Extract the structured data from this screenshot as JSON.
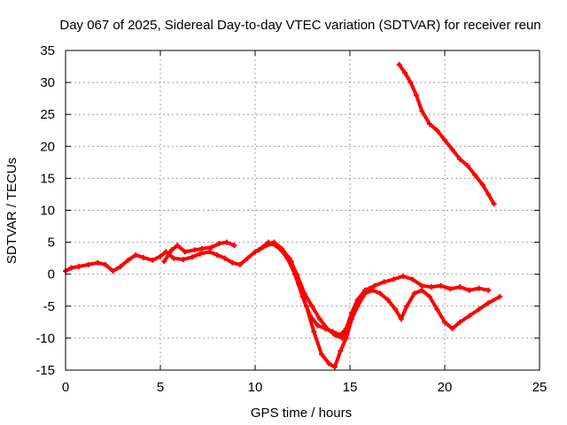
{
  "chart_data": {
    "type": "scatter",
    "title": "Day 067 of 2025, Sidereal Day-to-day VTEC variation (SDTVAR) for receiver reun",
    "xlabel": "GPS time / hours",
    "ylabel": "SDTVAR / TECUs",
    "xlim": [
      0,
      25
    ],
    "ylim": [
      -15,
      35
    ],
    "xticks": [
      0,
      5,
      10,
      15,
      20,
      25
    ],
    "yticks": [
      -15,
      -10,
      -5,
      0,
      5,
      10,
      15,
      20,
      25,
      30,
      35
    ],
    "grid": true,
    "color": "#ff0000",
    "series": [
      {
        "points": [
          [
            0,
            0.5
          ],
          [
            0.3,
            1.0
          ],
          [
            0.7,
            1.2
          ],
          [
            1.2,
            1.5
          ],
          [
            1.7,
            1.8
          ],
          [
            2.1,
            1.5
          ],
          [
            2.5,
            0.5
          ],
          [
            2.9,
            1.2
          ],
          [
            3.3,
            2.2
          ],
          [
            3.7,
            3.0
          ],
          [
            4.1,
            2.6
          ],
          [
            4.6,
            2.2
          ],
          [
            5.0,
            2.8
          ],
          [
            5.3,
            3.5
          ],
          [
            5.7,
            2.5
          ],
          [
            6.2,
            2.3
          ],
          [
            6.7,
            2.7
          ],
          [
            7.1,
            3.2
          ],
          [
            7.6,
            3.5
          ],
          [
            8.0,
            3.0
          ],
          [
            8.4,
            2.5
          ],
          [
            8.8,
            1.8
          ],
          [
            9.2,
            1.5
          ],
          [
            9.6,
            2.5
          ],
          [
            10.0,
            3.5
          ],
          [
            10.4,
            4.2
          ],
          [
            10.9,
            4.8
          ],
          [
            11.3,
            4.0
          ],
          [
            11.7,
            2.5
          ],
          [
            12.1,
            0.0
          ],
          [
            12.5,
            -3.5
          ],
          [
            12.9,
            -6.5
          ],
          [
            13.3,
            -8.0
          ],
          [
            13.7,
            -8.5
          ],
          [
            14.1,
            -9.0
          ],
          [
            14.5,
            -9.5
          ],
          [
            14.8,
            -8.5
          ],
          [
            15.1,
            -6.0
          ],
          [
            15.4,
            -4.0
          ],
          [
            15.8,
            -2.5
          ],
          [
            16.3,
            -1.8
          ],
          [
            16.8,
            -1.2
          ],
          [
            17.3,
            -0.8
          ],
          [
            17.8,
            -0.3
          ],
          [
            18.3,
            -0.8
          ],
          [
            18.8,
            -1.8
          ],
          [
            19.3,
            -2.0
          ],
          [
            19.8,
            -1.8
          ],
          [
            20.3,
            -2.3
          ],
          [
            20.8,
            -2.0
          ],
          [
            21.3,
            -2.5
          ],
          [
            21.8,
            -2.2
          ],
          [
            22.3,
            -2.5
          ]
        ]
      },
      {
        "points": [
          [
            5.2,
            2.0
          ],
          [
            5.6,
            3.8
          ],
          [
            5.9,
            4.5
          ],
          [
            6.3,
            3.5
          ],
          [
            6.8,
            3.8
          ],
          [
            7.2,
            4.0
          ],
          [
            7.7,
            4.2
          ],
          [
            8.1,
            4.8
          ],
          [
            8.5,
            5.0
          ],
          [
            8.9,
            4.5
          ]
        ]
      },
      {
        "points": [
          [
            10.2,
            3.8
          ],
          [
            10.7,
            5.0
          ],
          [
            11.1,
            4.5
          ],
          [
            11.5,
            3.5
          ],
          [
            11.9,
            2.0
          ],
          [
            12.3,
            -1.5
          ],
          [
            12.7,
            -5.0
          ],
          [
            13.1,
            -9.0
          ],
          [
            13.5,
            -12.5
          ],
          [
            13.9,
            -14.0
          ],
          [
            14.2,
            -14.5
          ],
          [
            14.5,
            -12.0
          ],
          [
            14.8,
            -10.0
          ],
          [
            15.1,
            -7.0
          ],
          [
            15.4,
            -5.0
          ],
          [
            15.8,
            -3.0
          ],
          [
            16.2,
            -2.5
          ],
          [
            16.6,
            -3.0
          ],
          [
            17.0,
            -4.0
          ],
          [
            17.4,
            -5.5
          ],
          [
            17.7,
            -7.0
          ],
          [
            18.0,
            -5.0
          ],
          [
            18.4,
            -3.0
          ],
          [
            18.8,
            -2.5
          ],
          [
            19.2,
            -3.5
          ],
          [
            19.6,
            -5.5
          ],
          [
            20.0,
            -7.5
          ],
          [
            20.4,
            -8.5
          ],
          [
            20.8,
            -7.5
          ],
          [
            21.3,
            -6.5
          ],
          [
            21.8,
            -5.5
          ],
          [
            22.3,
            -4.5
          ],
          [
            22.9,
            -3.5
          ]
        ]
      },
      {
        "points": [
          [
            11.0,
            5.0
          ],
          [
            11.4,
            4.0
          ],
          [
            11.8,
            2.5
          ],
          [
            12.2,
            0.0
          ],
          [
            12.6,
            -3.0
          ],
          [
            13.0,
            -5.0
          ],
          [
            13.4,
            -7.0
          ],
          [
            13.8,
            -8.5
          ],
          [
            14.2,
            -9.5
          ],
          [
            14.6,
            -10.0
          ],
          [
            14.9,
            -8.0
          ]
        ]
      },
      {
        "points": [
          [
            17.6,
            32.8
          ],
          [
            17.9,
            31.5
          ],
          [
            18.2,
            30.0
          ],
          [
            18.5,
            28.0
          ],
          [
            18.8,
            25.5
          ],
          [
            19.2,
            23.5
          ],
          [
            19.6,
            22.5
          ],
          [
            20.0,
            21.0
          ],
          [
            20.4,
            19.5
          ],
          [
            20.8,
            18.0
          ],
          [
            21.2,
            17.0
          ],
          [
            21.6,
            15.5
          ],
          [
            22.0,
            14.0
          ],
          [
            22.3,
            12.5
          ],
          [
            22.6,
            11.0
          ]
        ]
      }
    ]
  }
}
